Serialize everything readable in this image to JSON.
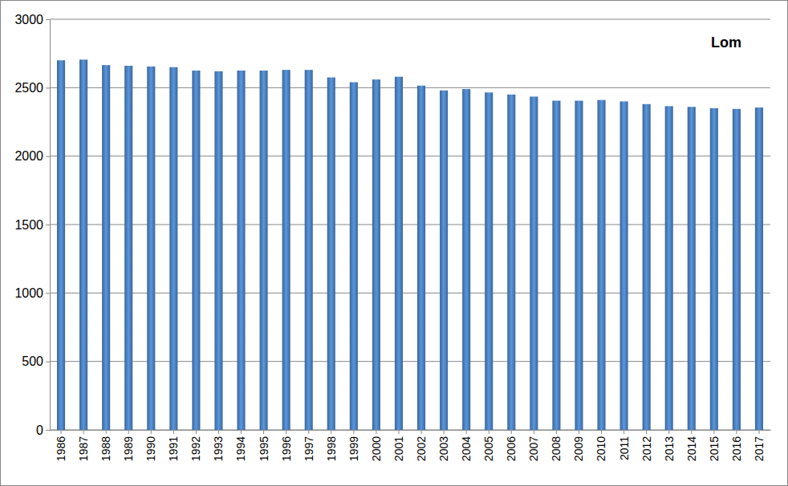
{
  "chart_data": {
    "type": "bar",
    "title": "Lom",
    "categories": [
      "1986",
      "1987",
      "1988",
      "1989",
      "1990",
      "1991",
      "1992",
      "1993",
      "1994",
      "1995",
      "1996",
      "1997",
      "1998",
      "1999",
      "2000",
      "2001",
      "2002",
      "2003",
      "2004",
      "2005",
      "2006",
      "2007",
      "2008",
      "2009",
      "2010",
      "2011",
      "2012",
      "2013",
      "2014",
      "2015",
      "2016",
      "2017"
    ],
    "values": [
      2700,
      2705,
      2665,
      2660,
      2655,
      2650,
      2625,
      2620,
      2625,
      2625,
      2630,
      2630,
      2575,
      2540,
      2560,
      2580,
      2515,
      2480,
      2490,
      2465,
      2450,
      2435,
      2405,
      2405,
      2410,
      2400,
      2380,
      2365,
      2360,
      2350,
      2345,
      2355
    ],
    "color": "#4a7ebb",
    "ylim": [
      0,
      3000
    ],
    "yticks": [
      0,
      500,
      1000,
      1500,
      2000,
      2500,
      3000
    ],
    "grid": true
  }
}
